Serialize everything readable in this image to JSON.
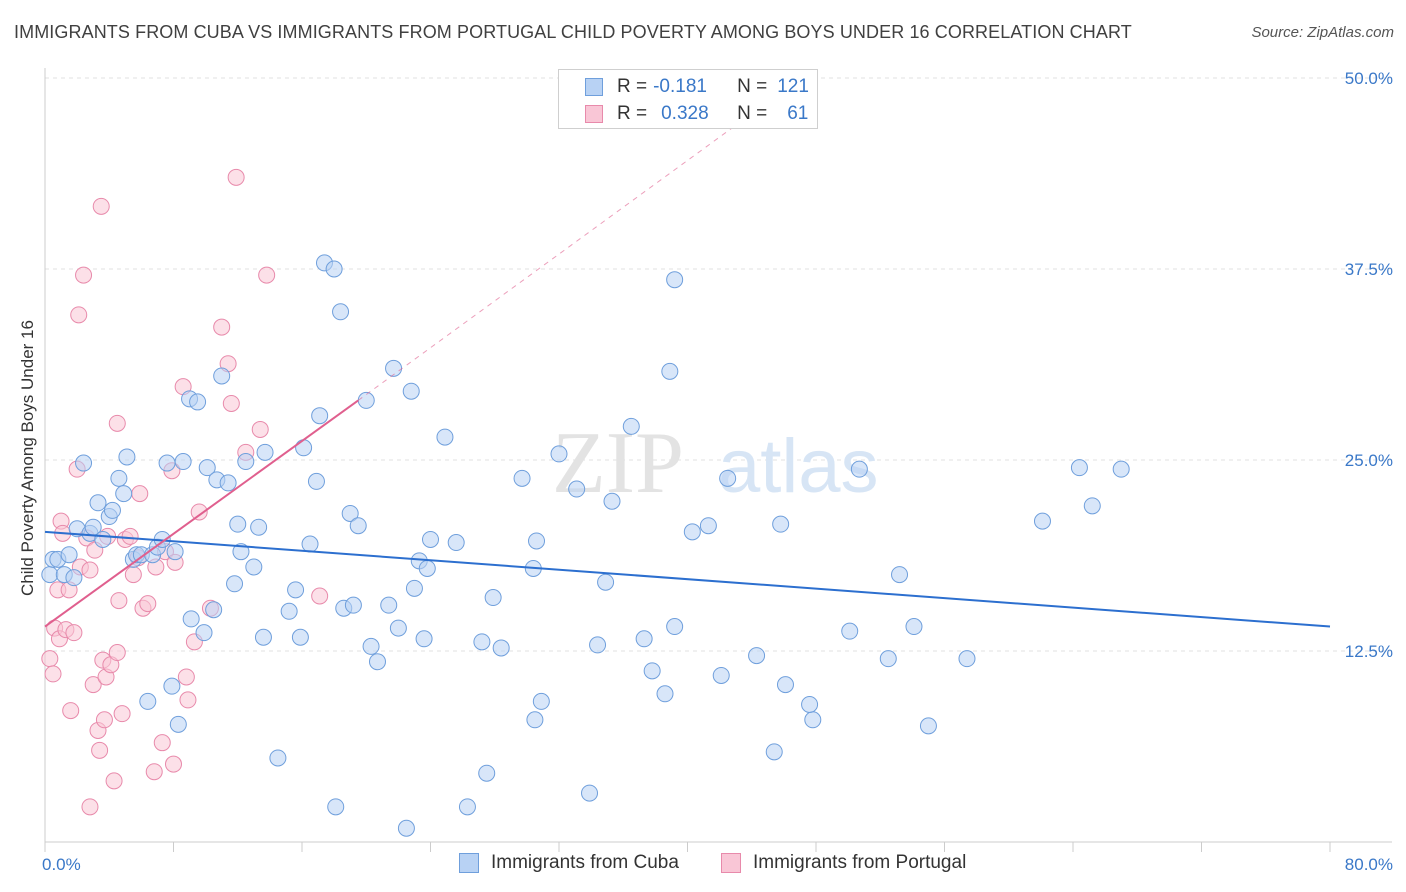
{
  "title": "IMMIGRANTS FROM CUBA VS IMMIGRANTS FROM PORTUGAL CHILD POVERTY AMONG BOYS UNDER 16 CORRELATION CHART",
  "source": "Source: ZipAtlas.com",
  "watermark": {
    "zip": "ZIP",
    "atlas": "atlas"
  },
  "legend": {
    "r_label": "R =",
    "n_label": "N =",
    "cuba": {
      "r": "-0.181",
      "n": "121"
    },
    "portugal": {
      "r": "0.328",
      "n": "61"
    }
  },
  "colors": {
    "cuba_fill": "#b8d2f4",
    "cuba_stroke": "#6f9fdc",
    "cuba_line": "#2c6fcf",
    "portugal_fill": "#f9c6d6",
    "portugal_stroke": "#e88aab",
    "portugal_line": "#e05f8e",
    "tick_label": "#3a78c8"
  },
  "chart_data": {
    "type": "scatter",
    "title": "IMMIGRANTS FROM CUBA VS IMMIGRANTS FROM PORTUGAL CHILD POVERTY AMONG BOYS UNDER 16 CORRELATION CHART",
    "xlabel": "",
    "ylabel": "Child Poverty Among Boys Under 16",
    "xlim": [
      0,
      80
    ],
    "ylim": [
      0,
      50
    ],
    "x_tick_labels": [
      "0.0%",
      "80.0%"
    ],
    "y_tick_labels": [
      "12.5%",
      "25.0%",
      "37.5%",
      "50.0%"
    ],
    "y_ticks": [
      12.5,
      25.0,
      37.5,
      50.0
    ],
    "grid": "horizontal dashed",
    "legend_placement": "top-center",
    "series": [
      {
        "name": "Immigrants from Cuba",
        "trend": {
          "x": [
            0,
            80
          ],
          "y": [
            20.3,
            14.1
          ]
        },
        "points": [
          [
            0.3,
            17.5
          ],
          [
            0.5,
            18.5
          ],
          [
            0.8,
            18.5
          ],
          [
            1.2,
            17.5
          ],
          [
            1.5,
            18.8
          ],
          [
            1.8,
            17.3
          ],
          [
            2.0,
            20.5
          ],
          [
            2.4,
            24.8
          ],
          [
            2.8,
            20.2
          ],
          [
            3.0,
            20.6
          ],
          [
            3.3,
            22.2
          ],
          [
            3.6,
            19.8
          ],
          [
            4.0,
            21.3
          ],
          [
            4.2,
            21.7
          ],
          [
            4.6,
            23.8
          ],
          [
            4.9,
            22.8
          ],
          [
            5.1,
            25.2
          ],
          [
            5.5,
            18.5
          ],
          [
            5.7,
            18.8
          ],
          [
            6.0,
            18.8
          ],
          [
            6.4,
            9.2
          ],
          [
            6.7,
            18.8
          ],
          [
            7.0,
            19.3
          ],
          [
            7.3,
            19.8
          ],
          [
            7.6,
            24.8
          ],
          [
            7.9,
            10.2
          ],
          [
            8.1,
            19.0
          ],
          [
            8.3,
            7.7
          ],
          [
            8.6,
            24.9
          ],
          [
            9.0,
            29.0
          ],
          [
            9.1,
            14.6
          ],
          [
            9.5,
            28.8
          ],
          [
            9.9,
            13.7
          ],
          [
            10.1,
            24.5
          ],
          [
            10.5,
            15.2
          ],
          [
            10.7,
            23.7
          ],
          [
            11.0,
            30.5
          ],
          [
            11.4,
            23.5
          ],
          [
            11.8,
            16.9
          ],
          [
            12.0,
            20.8
          ],
          [
            12.2,
            19.0
          ],
          [
            12.5,
            24.9
          ],
          [
            13.0,
            18.0
          ],
          [
            13.3,
            20.6
          ],
          [
            13.6,
            13.4
          ],
          [
            13.7,
            25.5
          ],
          [
            14.5,
            5.5
          ],
          [
            15.2,
            15.1
          ],
          [
            15.6,
            16.5
          ],
          [
            15.9,
            13.4
          ],
          [
            16.1,
            25.8
          ],
          [
            16.5,
            19.5
          ],
          [
            16.9,
            23.6
          ],
          [
            17.1,
            27.9
          ],
          [
            17.4,
            37.9
          ],
          [
            18.0,
            37.5
          ],
          [
            18.1,
            2.3
          ],
          [
            18.4,
            34.7
          ],
          [
            18.6,
            15.3
          ],
          [
            19.0,
            21.5
          ],
          [
            19.2,
            15.5
          ],
          [
            19.5,
            20.7
          ],
          [
            20.0,
            28.9
          ],
          [
            20.3,
            12.8
          ],
          [
            20.7,
            11.8
          ],
          [
            21.4,
            15.5
          ],
          [
            21.7,
            31.0
          ],
          [
            22.0,
            14.0
          ],
          [
            22.5,
            0.9
          ],
          [
            22.8,
            29.5
          ],
          [
            23.0,
            16.6
          ],
          [
            23.3,
            18.4
          ],
          [
            23.6,
            13.3
          ],
          [
            23.8,
            17.9
          ],
          [
            24.0,
            19.8
          ],
          [
            24.9,
            26.5
          ],
          [
            25.6,
            19.6
          ],
          [
            26.3,
            2.3
          ],
          [
            27.2,
            13.1
          ],
          [
            27.5,
            4.5
          ],
          [
            27.9,
            16.0
          ],
          [
            28.4,
            12.7
          ],
          [
            29.7,
            23.8
          ],
          [
            30.5,
            8.0
          ],
          [
            30.6,
            19.7
          ],
          [
            30.9,
            9.2
          ],
          [
            30.4,
            17.9
          ],
          [
            32.0,
            25.4
          ],
          [
            33.1,
            23.1
          ],
          [
            33.9,
            3.2
          ],
          [
            34.4,
            12.9
          ],
          [
            34.9,
            17.0
          ],
          [
            35.3,
            22.3
          ],
          [
            36.5,
            27.2
          ],
          [
            37.3,
            13.3
          ],
          [
            37.8,
            11.2
          ],
          [
            38.6,
            9.7
          ],
          [
            38.9,
            30.8
          ],
          [
            39.2,
            14.1
          ],
          [
            40.3,
            20.3
          ],
          [
            41.3,
            20.7
          ],
          [
            42.1,
            10.9
          ],
          [
            42.5,
            23.8
          ],
          [
            44.3,
            12.2
          ],
          [
            45.4,
            5.9
          ],
          [
            45.8,
            20.8
          ],
          [
            46.1,
            10.3
          ],
          [
            47.8,
            8.0
          ],
          [
            47.6,
            9.0
          ],
          [
            50.1,
            13.8
          ],
          [
            50.7,
            24.4
          ],
          [
            52.5,
            12.0
          ],
          [
            53.2,
            17.5
          ],
          [
            54.1,
            14.1
          ],
          [
            55.0,
            7.6
          ],
          [
            57.4,
            12.0
          ],
          [
            62.1,
            21.0
          ],
          [
            64.4,
            24.5
          ],
          [
            65.2,
            22.0
          ],
          [
            67.0,
            24.4
          ],
          [
            39.2,
            36.8
          ]
        ]
      },
      {
        "name": "Immigrants from Portugal",
        "trend": {
          "x": [
            0,
            19.5
          ],
          "y": [
            14.1,
            28.9
          ],
          "extended": {
            "x": [
              19.5,
              46.0
            ],
            "y": [
              28.9,
              49.2
            ]
          }
        },
        "points": [
          [
            0.3,
            12.0
          ],
          [
            0.5,
            11.0
          ],
          [
            0.6,
            14.0
          ],
          [
            0.8,
            16.5
          ],
          [
            0.9,
            13.3
          ],
          [
            1.0,
            21.0
          ],
          [
            1.1,
            20.2
          ],
          [
            1.3,
            13.9
          ],
          [
            1.5,
            16.5
          ],
          [
            1.6,
            8.6
          ],
          [
            1.8,
            13.7
          ],
          [
            2.0,
            24.4
          ],
          [
            2.1,
            34.5
          ],
          [
            2.2,
            18.0
          ],
          [
            2.4,
            37.1
          ],
          [
            2.6,
            19.9
          ],
          [
            2.8,
            17.8
          ],
          [
            2.8,
            2.3
          ],
          [
            3.0,
            10.3
          ],
          [
            3.1,
            19.1
          ],
          [
            3.3,
            7.3
          ],
          [
            3.4,
            6.0
          ],
          [
            3.5,
            41.6
          ],
          [
            3.6,
            11.9
          ],
          [
            3.7,
            8.0
          ],
          [
            3.8,
            10.8
          ],
          [
            3.9,
            20.0
          ],
          [
            4.1,
            11.6
          ],
          [
            4.3,
            4.0
          ],
          [
            4.5,
            27.4
          ],
          [
            4.5,
            12.4
          ],
          [
            4.6,
            15.8
          ],
          [
            4.8,
            8.4
          ],
          [
            5.0,
            19.8
          ],
          [
            5.5,
            17.5
          ],
          [
            5.3,
            20.0
          ],
          [
            5.8,
            18.6
          ],
          [
            5.9,
            22.8
          ],
          [
            6.1,
            15.3
          ],
          [
            6.4,
            15.6
          ],
          [
            6.8,
            4.6
          ],
          [
            6.9,
            18.0
          ],
          [
            7.3,
            6.5
          ],
          [
            7.5,
            19.0
          ],
          [
            7.9,
            24.3
          ],
          [
            8.0,
            5.1
          ],
          [
            8.1,
            18.3
          ],
          [
            8.6,
            29.8
          ],
          [
            8.8,
            10.8
          ],
          [
            8.9,
            9.3
          ],
          [
            9.3,
            13.1
          ],
          [
            9.6,
            21.6
          ],
          [
            10.3,
            15.3
          ],
          [
            11.0,
            33.7
          ],
          [
            11.4,
            31.3
          ],
          [
            11.6,
            28.7
          ],
          [
            11.9,
            43.5
          ],
          [
            12.5,
            25.5
          ],
          [
            13.4,
            27.0
          ],
          [
            13.8,
            37.1
          ],
          [
            17.1,
            16.1
          ]
        ]
      }
    ]
  },
  "bottom_legend": {
    "cuba": "Immigrants from Cuba",
    "portugal": "Immigrants from Portugal"
  }
}
